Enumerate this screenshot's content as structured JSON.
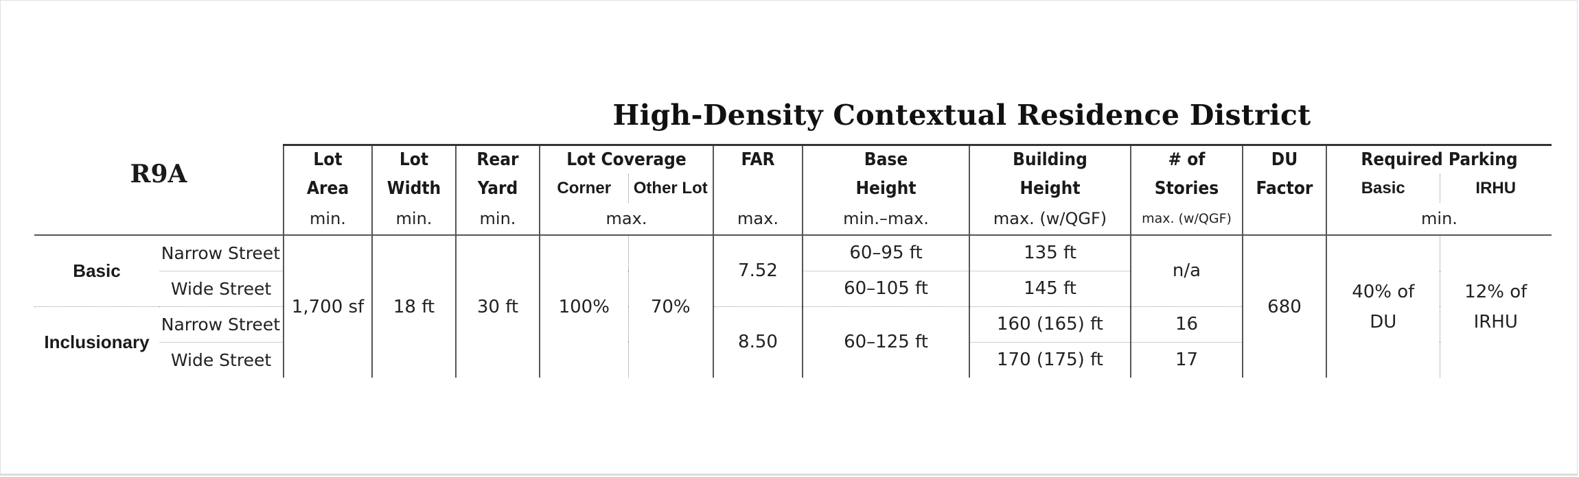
{
  "title": "High-Density Contextual Residence District",
  "district": "R9A",
  "headers": {
    "lot_area": [
      "Lot",
      "Area"
    ],
    "lot_width": [
      "Lot",
      "Width"
    ],
    "rear_yard": [
      "Rear",
      "Yard"
    ],
    "lot_coverage": "Lot Coverage",
    "corner": "Corner",
    "other_lot": "Other Lot",
    "far": "FAR",
    "base_height": [
      "Base",
      "Height"
    ],
    "building_height": [
      "Building",
      "Height"
    ],
    "stories": [
      "# of",
      "Stories"
    ],
    "du_factor": [
      "DU",
      "Factor"
    ],
    "required_parking": "Required Parking",
    "basic": "Basic",
    "irhu": "IRHU"
  },
  "units": {
    "lot_area": "min.",
    "lot_width": "min.",
    "rear_yard": "min.",
    "lot_coverage": "max.",
    "far": "max.",
    "base_height": "min.–max.",
    "building_height": "max. (w/QGF)",
    "stories": "max. (w/QGF)",
    "parking": "min."
  },
  "rows": {
    "basic_label": "Basic",
    "inclusionary_label": "Inclusionary",
    "narrow": "Narrow Street",
    "wide": "Wide Street"
  },
  "values": {
    "lot_area": "1,700 sf",
    "lot_width": "18 ft",
    "rear_yard": "30 ft",
    "corner": "100%",
    "other_lot": "70%",
    "far_basic": "7.52",
    "far_inclusionary": "8.50",
    "base_basic_narrow": "60–95 ft",
    "base_basic_wide": "60–105 ft",
    "base_inclusionary": "60–125 ft",
    "bh_basic_narrow": "135 ft",
    "bh_basic_wide": "145 ft",
    "bh_incl_narrow": "160 (165) ft",
    "bh_incl_wide": "170 (175) ft",
    "stories_basic": "n/a",
    "stories_incl_narrow": "16",
    "stories_incl_wide": "17",
    "du_factor": "680",
    "parking_basic": [
      "40% of",
      "DU"
    ],
    "parking_irhu": [
      "12% of",
      "IRHU"
    ]
  }
}
